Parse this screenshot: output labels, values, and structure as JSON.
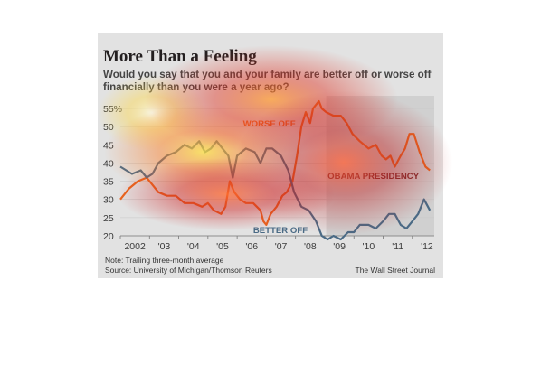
{
  "title": "More Than a Feeling",
  "subtitle": "Would you say that you and your family are better off or worse off financially than you were a year ago?",
  "note": "Note: Trailing three-month average",
  "source": "Source: University of Michigan/Thomson Reuters",
  "credit": "The Wall Street Journal",
  "colors": {
    "background": "#e2e2e2",
    "shade": "#d0d0d0",
    "worse_off": "#e8661f",
    "better_off": "#4a6a85",
    "presidency_label": "#7a2f2f"
  },
  "heatmap_overlay": true,
  "chart_data": {
    "type": "line",
    "title": "More Than a Feeling",
    "ylim": [
      20,
      57
    ],
    "xlim": [
      2002.0,
      2012.75
    ],
    "y_ticks": [
      "55%",
      "50",
      "45",
      "40",
      "35",
      "30",
      "25",
      "20"
    ],
    "x_ticks": [
      "2002",
      "'03",
      "'04",
      "'05",
      "'06",
      "'07",
      "'08",
      "'09",
      "'10",
      "'11",
      "'12"
    ],
    "shaded_region": {
      "label": "OBAMA PRESIDENCY",
      "start": 2009.05,
      "end": 2012.75
    },
    "series": [
      {
        "name": "WORSE OFF",
        "x": [
          2002.0,
          2002.3,
          2002.6,
          2002.9,
          2003.1,
          2003.3,
          2003.6,
          2003.9,
          2004.2,
          2004.5,
          2004.8,
          2005.0,
          2005.2,
          2005.45,
          2005.6,
          2005.75,
          2005.9,
          2006.1,
          2006.3,
          2006.55,
          2006.8,
          2006.9,
          2007.0,
          2007.15,
          2007.35,
          2007.55,
          2007.7,
          2007.9,
          2008.05,
          2008.2,
          2008.35,
          2008.5,
          2008.6,
          2008.8,
          2008.9,
          2009.05,
          2009.3,
          2009.55,
          2009.75,
          2009.95,
          2010.2,
          2010.5,
          2010.75,
          2010.95,
          2011.1,
          2011.25,
          2011.4,
          2011.6,
          2011.75,
          2011.9,
          2012.05,
          2012.25,
          2012.45,
          2012.6
        ],
        "values": [
          30,
          33,
          35,
          36,
          34,
          32,
          31,
          31,
          29,
          29,
          28,
          29,
          27,
          26,
          28,
          35,
          32,
          30,
          29,
          29,
          27,
          24,
          23,
          26,
          28,
          31,
          32,
          35,
          42,
          50,
          54,
          51,
          55,
          57,
          55,
          54,
          53,
          53,
          51,
          48,
          46,
          44,
          45,
          42,
          41,
          42,
          39,
          42,
          44,
          48,
          48,
          43,
          39,
          38
        ]
      },
      {
        "name": "BETTER OFF",
        "x": [
          2002.0,
          2002.2,
          2002.4,
          2002.7,
          2002.9,
          2003.1,
          2003.3,
          2003.6,
          2003.9,
          2004.2,
          2004.45,
          2004.7,
          2004.9,
          2005.1,
          2005.3,
          2005.5,
          2005.7,
          2005.85,
          2006.0,
          2006.3,
          2006.6,
          2006.8,
          2007.0,
          2007.2,
          2007.5,
          2007.75,
          2007.95,
          2008.2,
          2008.45,
          2008.7,
          2008.9,
          2009.1,
          2009.3,
          2009.55,
          2009.8,
          2010.0,
          2010.2,
          2010.5,
          2010.75,
          2011.0,
          2011.2,
          2011.4,
          2011.6,
          2011.8,
          2012.0,
          2012.2,
          2012.4,
          2012.6
        ],
        "values": [
          39,
          38,
          37,
          38,
          36,
          37,
          40,
          42,
          43,
          45,
          44,
          46,
          43,
          44,
          46,
          44,
          42,
          36,
          42,
          44,
          43,
          40,
          44,
          44,
          42,
          38,
          32,
          28,
          27,
          24,
          20,
          19,
          20,
          19,
          21,
          21,
          23,
          23,
          22,
          24,
          26,
          26,
          23,
          22,
          24,
          26,
          30,
          27
        ]
      }
    ],
    "annotations": [
      {
        "text": "WORSE OFF",
        "series": "WORSE OFF"
      },
      {
        "text": "BETTER OFF",
        "series": "BETTER OFF"
      },
      {
        "text": "OBAMA PRESIDENCY",
        "series": null
      }
    ]
  }
}
